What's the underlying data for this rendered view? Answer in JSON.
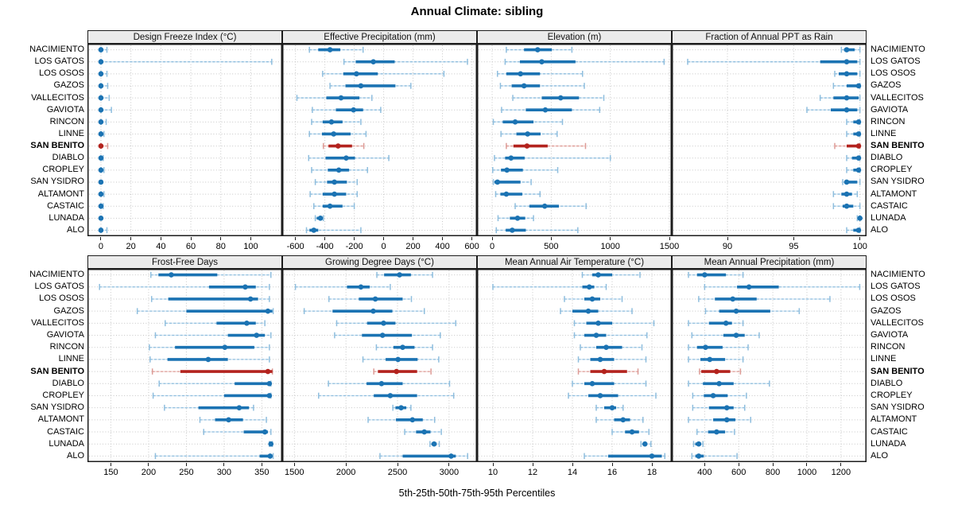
{
  "title": "Annual Climate: sibling",
  "caption": "5th-25th-50th-75th-95th Percentiles",
  "highlighted_site": "SAN BENITO",
  "sites": [
    "NACIMIENTO",
    "LOS GATOS",
    "LOS OSOS",
    "GAZOS",
    "VALLECITOS",
    "GAVIOTA",
    "RINCON",
    "LINNE",
    "SAN BENITO",
    "DIABLO",
    "CROPLEY",
    "SAN YSIDRO",
    "ALTAMONT",
    "CASTAIC",
    "LUNADA",
    "ALO"
  ],
  "colors": {
    "series_normal": "#1b73b3",
    "series_normal_light": "#8fbede",
    "series_normal_faint": "#d7e7f3",
    "series_highlight": "#b3231e",
    "series_highlight_light": "#dd9b96",
    "series_highlight_faint": "#f3d9d6",
    "header_bg": "#ebebeb",
    "panel_border": "#1c1c1c",
    "grid": "#c6c6c6"
  },
  "chart_data": {
    "type": "percentile-dotplot",
    "percentiles": [
      5,
      25,
      50,
      75,
      95
    ],
    "layout": {
      "rows": 2,
      "cols": 4,
      "legend": "none",
      "grid": "dotted"
    },
    "panels": [
      {
        "title": "Design Freeze Index (°C)",
        "ticks": [
          0,
          20,
          40,
          60,
          80,
          100
        ],
        "domain": [
          -9,
          121
        ],
        "values": [
          [
            0,
            0,
            0,
            1,
            4
          ],
          [
            0,
            0,
            0,
            1,
            114
          ],
          [
            0,
            0,
            0,
            1,
            4
          ],
          [
            0,
            0,
            0,
            1,
            4.5
          ],
          [
            0,
            0,
            0,
            1,
            5.5
          ],
          [
            0,
            0,
            0,
            0.5,
            7
          ],
          [
            0,
            0,
            0,
            0.5,
            3.5
          ],
          [
            0,
            0,
            0,
            0.5,
            2
          ],
          [
            0,
            0,
            0,
            1,
            4.5
          ],
          [
            0,
            0,
            0,
            0.5,
            1.5
          ],
          [
            0,
            0,
            0,
            0.5,
            2
          ],
          [
            0,
            0,
            0,
            0,
            0.5
          ],
          [
            0,
            0,
            0,
            0.5,
            2
          ],
          [
            0,
            0,
            0,
            0.5,
            1.5
          ],
          [
            0,
            0,
            0,
            0,
            0.5
          ],
          [
            0,
            0,
            0,
            1,
            4
          ]
        ]
      },
      {
        "title": "Effective Precipitation (mm)",
        "ticks": [
          -600,
          -400,
          -200,
          0,
          200,
          400,
          600
        ],
        "domain": [
          -690,
          635
        ],
        "values": [
          [
            -505,
            -445,
            -365,
            -295,
            -140
          ],
          [
            -270,
            -190,
            -70,
            75,
            570
          ],
          [
            -415,
            -275,
            -185,
            -40,
            410
          ],
          [
            -365,
            -260,
            -155,
            80,
            185
          ],
          [
            -590,
            -390,
            -290,
            -165,
            -80
          ],
          [
            -485,
            -325,
            -205,
            -140,
            -20
          ],
          [
            -490,
            -415,
            -355,
            -280,
            -155
          ],
          [
            -505,
            -420,
            -340,
            -225,
            -120
          ],
          [
            -410,
            -375,
            -310,
            -215,
            -135
          ],
          [
            -510,
            -395,
            -255,
            -195,
            35
          ],
          [
            -490,
            -380,
            -305,
            -235,
            -110
          ],
          [
            -465,
            -385,
            -335,
            -250,
            -180
          ],
          [
            -500,
            -415,
            -335,
            -255,
            -180
          ],
          [
            -475,
            -415,
            -365,
            -280,
            -200
          ],
          [
            -465,
            -455,
            -430,
            -420,
            -410
          ],
          [
            -525,
            -505,
            -475,
            -445,
            -155
          ]
        ]
      },
      {
        "title": "Elevation (m)",
        "ticks": [
          0,
          500,
          1000,
          1500
        ],
        "domain": [
          -128,
          1520
        ],
        "values": [
          [
            120,
            270,
            385,
            505,
            675
          ],
          [
            110,
            235,
            420,
            705,
            1455
          ],
          [
            45,
            120,
            240,
            405,
            765
          ],
          [
            70,
            165,
            270,
            405,
            780
          ],
          [
            175,
            420,
            580,
            735,
            945
          ],
          [
            80,
            285,
            450,
            675,
            910
          ],
          [
            10,
            90,
            195,
            350,
            595
          ],
          [
            75,
            205,
            300,
            410,
            550
          ],
          [
            120,
            180,
            295,
            470,
            790
          ],
          [
            20,
            110,
            160,
            275,
            1000
          ],
          [
            5,
            75,
            125,
            260,
            555
          ],
          [
            10,
            20,
            45,
            240,
            330
          ],
          [
            30,
            70,
            120,
            255,
            405
          ],
          [
            195,
            315,
            445,
            565,
            795
          ],
          [
            50,
            150,
            215,
            280,
            350
          ],
          [
            35,
            115,
            170,
            285,
            725
          ]
        ]
      },
      {
        "title": "Fraction of Annual PPT as Rain",
        "ticks": [
          90,
          95,
          100
        ],
        "domain": [
          85.8,
          100.5
        ],
        "values": [
          [
            98.6,
            98.8,
            99,
            99.6,
            100
          ],
          [
            87,
            97,
            99,
            99.8,
            100
          ],
          [
            98.1,
            98.4,
            99,
            99.8,
            100
          ],
          [
            98,
            99,
            99.9,
            100,
            100
          ],
          [
            97,
            98,
            99,
            99.9,
            100
          ],
          [
            96,
            97.8,
            99,
            99.8,
            100
          ],
          [
            99,
            99.5,
            99.9,
            100,
            100
          ],
          [
            99,
            99.5,
            99.9,
            100,
            100
          ],
          [
            98.1,
            99,
            99.9,
            100,
            100
          ],
          [
            99,
            99.4,
            99.9,
            100,
            100
          ],
          [
            99,
            99.5,
            99.9,
            100,
            100
          ],
          [
            98.7,
            98.9,
            99,
            99.8,
            100
          ],
          [
            98,
            98.6,
            99,
            99.4,
            99.8
          ],
          [
            98,
            98.7,
            99,
            99.5,
            100
          ],
          [
            99.8,
            99.9,
            100,
            100,
            100
          ],
          [
            99,
            99.5,
            99.9,
            100,
            100
          ]
        ]
      },
      {
        "title": "Frost-Free Days",
        "ticks": [
          150,
          200,
          250,
          300,
          350
        ],
        "domain": [
          119,
          377
        ],
        "values": [
          [
            203,
            213,
            230,
            291,
            362
          ],
          [
            135,
            280,
            328,
            342,
            360
          ],
          [
            204,
            226,
            335,
            345,
            360
          ],
          [
            185,
            250,
            358,
            364,
            365
          ],
          [
            222,
            290,
            330,
            342,
            354
          ],
          [
            209,
            305,
            343,
            354,
            362
          ],
          [
            201,
            235,
            301,
            340,
            360
          ],
          [
            202,
            225,
            279,
            305,
            360
          ],
          [
            205,
            242,
            358,
            364,
            364
          ],
          [
            214,
            314,
            360,
            362,
            362
          ],
          [
            206,
            300,
            360,
            362,
            362
          ],
          [
            221,
            266,
            320,
            333,
            339
          ],
          [
            268,
            288,
            306,
            325,
            356
          ],
          [
            273,
            326,
            354,
            358,
            362
          ],
          [
            360,
            361,
            362,
            363,
            364
          ],
          [
            209,
            347,
            361,
            364,
            365
          ]
        ]
      },
      {
        "title": "Growing Degree Days (°C)",
        "ticks": [
          1500,
          2000,
          2500,
          3000
        ],
        "domain": [
          1382,
          3271
        ],
        "values": [
          [
            2300,
            2370,
            2520,
            2630,
            2840
          ],
          [
            1510,
            2010,
            2145,
            2230,
            2430
          ],
          [
            1835,
            2125,
            2285,
            2550,
            2635
          ],
          [
            1595,
            1870,
            2265,
            2450,
            2760
          ],
          [
            1910,
            2205,
            2365,
            2480,
            3065
          ],
          [
            1890,
            2155,
            2355,
            2640,
            2915
          ],
          [
            2295,
            2460,
            2550,
            2665,
            2840
          ],
          [
            2165,
            2385,
            2505,
            2695,
            2900
          ],
          [
            2270,
            2310,
            2490,
            2690,
            2825
          ],
          [
            1830,
            2200,
            2345,
            2550,
            3005
          ],
          [
            1735,
            2270,
            2430,
            2690,
            3045
          ],
          [
            2455,
            2480,
            2535,
            2585,
            2630
          ],
          [
            2215,
            2485,
            2645,
            2745,
            2860
          ],
          [
            2570,
            2680,
            2760,
            2820,
            2925
          ],
          [
            2815,
            2830,
            2855,
            2880,
            2905
          ],
          [
            2330,
            2550,
            3020,
            3065,
            3180
          ]
        ]
      },
      {
        "title": "Mean Annual Air Temperature (°C)",
        "ticks": [
          10,
          12,
          14,
          16,
          18
        ],
        "domain": [
          9.2,
          19.0
        ],
        "values": [
          [
            14.5,
            15,
            15.3,
            16,
            17.4
          ],
          [
            10,
            14.5,
            14.85,
            15.1,
            15.7
          ],
          [
            13.6,
            14.6,
            15,
            15.4,
            16.5
          ],
          [
            13.4,
            14,
            14.8,
            15.3,
            17
          ],
          [
            14.1,
            14.7,
            15.3,
            16,
            18.1
          ],
          [
            14.1,
            14.6,
            15.2,
            15.7,
            17.75
          ],
          [
            14.4,
            15.2,
            15.7,
            16.5,
            17.5
          ],
          [
            14.3,
            14.9,
            15.4,
            16.1,
            17.7
          ],
          [
            14.3,
            14.9,
            15.6,
            16.75,
            17.3
          ],
          [
            14,
            14.6,
            15,
            16.1,
            17.7
          ],
          [
            13.8,
            14.8,
            15.4,
            16.3,
            18.2
          ],
          [
            15.2,
            15.6,
            16,
            16.2,
            16.55
          ],
          [
            15.2,
            16.1,
            16.55,
            16.9,
            17.55
          ],
          [
            16,
            16.65,
            17,
            17.35,
            17.85
          ],
          [
            17.45,
            17.55,
            17.65,
            17.75,
            17.95
          ],
          [
            14.6,
            15.8,
            18,
            18.5,
            18.65
          ]
        ]
      },
      {
        "title": "Mean Annual Precipitation (mm)",
        "ticks": [
          400,
          600,
          800,
          1000,
          1200
        ],
        "domain": [
          207,
          1350
        ],
        "values": [
          [
            305,
            355,
            400,
            525,
            625
          ],
          [
            400,
            590,
            660,
            835,
            1310
          ],
          [
            365,
            460,
            565,
            705,
            1135
          ],
          [
            405,
            485,
            585,
            785,
            955
          ],
          [
            305,
            425,
            525,
            560,
            625
          ],
          [
            325,
            510,
            585,
            635,
            720
          ],
          [
            305,
            355,
            405,
            505,
            655
          ],
          [
            305,
            375,
            430,
            520,
            625
          ],
          [
            370,
            380,
            470,
            550,
            610
          ],
          [
            305,
            390,
            485,
            570,
            780
          ],
          [
            330,
            395,
            450,
            535,
            645
          ],
          [
            330,
            425,
            530,
            570,
            635
          ],
          [
            305,
            450,
            530,
            580,
            670
          ],
          [
            355,
            420,
            470,
            520,
            575
          ],
          [
            335,
            345,
            365,
            380,
            390
          ],
          [
            325,
            345,
            365,
            395,
            590
          ]
        ]
      }
    ]
  }
}
